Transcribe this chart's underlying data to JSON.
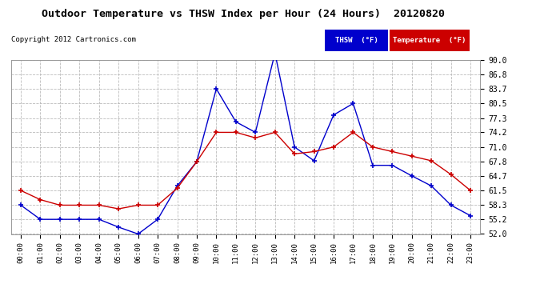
{
  "title": "Outdoor Temperature vs THSW Index per Hour (24 Hours)  20120820",
  "copyright": "Copyright 2012 Cartronics.com",
  "hours": [
    "00:00",
    "01:00",
    "02:00",
    "03:00",
    "04:00",
    "05:00",
    "06:00",
    "07:00",
    "08:00",
    "09:00",
    "10:00",
    "11:00",
    "12:00",
    "13:00",
    "14:00",
    "15:00",
    "16:00",
    "17:00",
    "18:00",
    "19:00",
    "20:00",
    "21:00",
    "22:00",
    "23:00"
  ],
  "thsw": [
    58.3,
    55.2,
    55.2,
    55.2,
    55.2,
    53.5,
    52.0,
    55.2,
    62.5,
    67.8,
    83.7,
    76.5,
    74.2,
    91.5,
    71.0,
    68.0,
    78.0,
    80.5,
    67.0,
    67.0,
    64.7,
    62.5,
    58.3,
    56.0
  ],
  "temperature": [
    61.5,
    59.5,
    58.3,
    58.3,
    58.3,
    57.5,
    58.3,
    58.3,
    62.0,
    67.8,
    74.2,
    74.2,
    73.0,
    74.2,
    69.5,
    70.0,
    71.0,
    74.2,
    71.0,
    70.0,
    69.0,
    68.0,
    65.0,
    61.5
  ],
  "thsw_color": "#0000cc",
  "temp_color": "#cc0000",
  "background_color": "#ffffff",
  "grid_color": "#bbbbbb",
  "ylim": [
    52.0,
    90.0
  ],
  "yticks": [
    52.0,
    55.2,
    58.3,
    61.5,
    64.7,
    67.8,
    71.0,
    74.2,
    77.3,
    80.5,
    83.7,
    86.8,
    90.0
  ],
  "legend_thsw_bg": "#0000cc",
  "legend_temp_bg": "#cc0000",
  "legend_text_color": "#ffffff",
  "thsw_label": "THSW  (°F)",
  "temp_label": "Temperature  (°F)"
}
